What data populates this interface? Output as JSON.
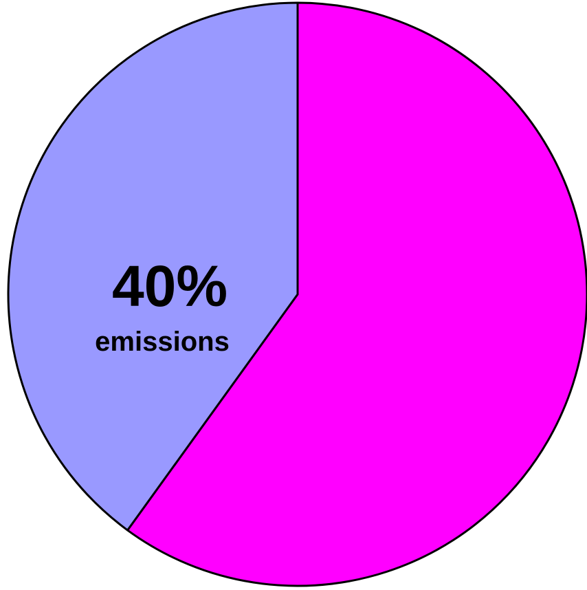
{
  "chart_data": {
    "type": "pie",
    "title": "",
    "slices": [
      {
        "label": "",
        "value": 60,
        "color": "#ff00ff"
      },
      {
        "label": "emissions",
        "value": 40,
        "color": "#9999ff"
      }
    ],
    "data_labels": [
      {
        "percent": "40%",
        "category": "emissions"
      }
    ],
    "legend": "none"
  }
}
